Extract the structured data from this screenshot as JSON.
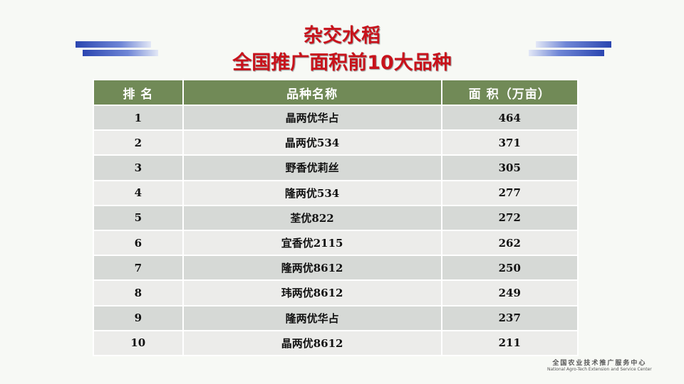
{
  "title": {
    "line1": "杂交水稻",
    "line2": "全国推广面积前10大品种"
  },
  "table": {
    "headers": [
      "排 名",
      "品种名称",
      "面 积（万亩）"
    ],
    "rows": [
      {
        "rank": "1",
        "name": "晶两优华占",
        "area": "464"
      },
      {
        "rank": "2",
        "name": "晶两优534",
        "area": "371"
      },
      {
        "rank": "3",
        "name": "野香优莉丝",
        "area": "305"
      },
      {
        "rank": "4",
        "name": "隆两优534",
        "area": "277"
      },
      {
        "rank": "5",
        "name": "荃优822",
        "area": "272"
      },
      {
        "rank": "6",
        "name": "宜香优2115",
        "area": "262"
      },
      {
        "rank": "7",
        "name": "隆两优8612",
        "area": "250"
      },
      {
        "rank": "8",
        "name": "玮两优8612",
        "area": "249"
      },
      {
        "rank": "9",
        "name": "隆两优华占",
        "area": "237"
      },
      {
        "rank": "10",
        "name": "晶两优8612",
        "area": "211"
      }
    ]
  },
  "footer": {
    "cn": "全国农业技术推广服务中心",
    "en": "National Agro-Tech Extension and Service Center"
  },
  "colors": {
    "title": "#c8121b",
    "header": "#718a57",
    "accent": "#2b46b0"
  }
}
